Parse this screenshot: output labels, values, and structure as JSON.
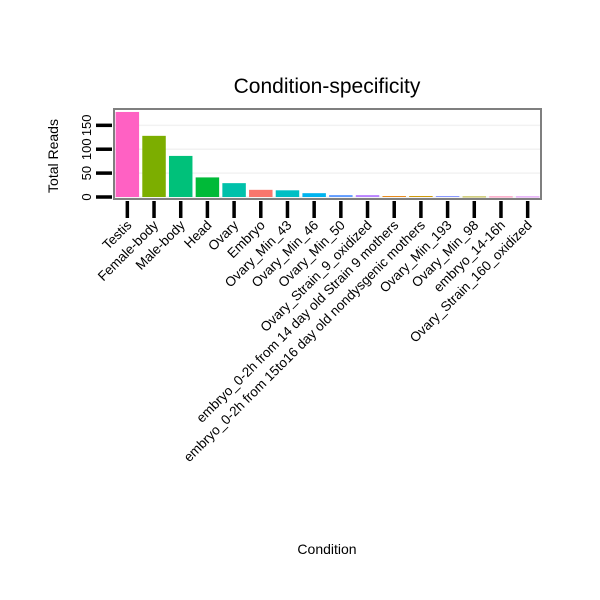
{
  "chart_data": {
    "type": "bar",
    "title": "Condition-specificity",
    "xlabel": "Condition",
    "ylabel": "Total Reads",
    "ylim": [
      0,
      180
    ],
    "yticks": [
      0,
      50,
      100,
      150
    ],
    "ytick_labels": [
      "0",
      "50",
      "100",
      "150"
    ],
    "grid": true,
    "categories": [
      "Testis",
      "Female-body",
      "Male-body",
      "Head",
      "Ovary",
      "Embryo",
      "Ovary_Min_43",
      "Ovary_Min_46",
      "Ovary_Min_50",
      "Ovary_Strain_9_oxidized",
      "embryo_0-2h from 14 day old Strain 9 mothers",
      "embryo_0-2h from 15to16 day old nondysgenic mothers",
      "Ovary_Min_193",
      "Ovary_Min_98",
      "embryo_14-16h",
      "Ovary_Strain_160_oxidized"
    ],
    "values": [
      178,
      128,
      86,
      41,
      29,
      15,
      14,
      8,
      4,
      4,
      2,
      2,
      2,
      1,
      1,
      1
    ],
    "colors": [
      "#FF61C3",
      "#7CAE00",
      "#00C17A",
      "#00BA38",
      "#00C1AA",
      "#F8766D",
      "#00BFC4",
      "#00B4EF",
      "#619CFF",
      "#B983FF",
      "#E68613",
      "#CD9600",
      "#8494FF",
      "#ABA300",
      "#FF68A1",
      "#DB72FB"
    ]
  }
}
